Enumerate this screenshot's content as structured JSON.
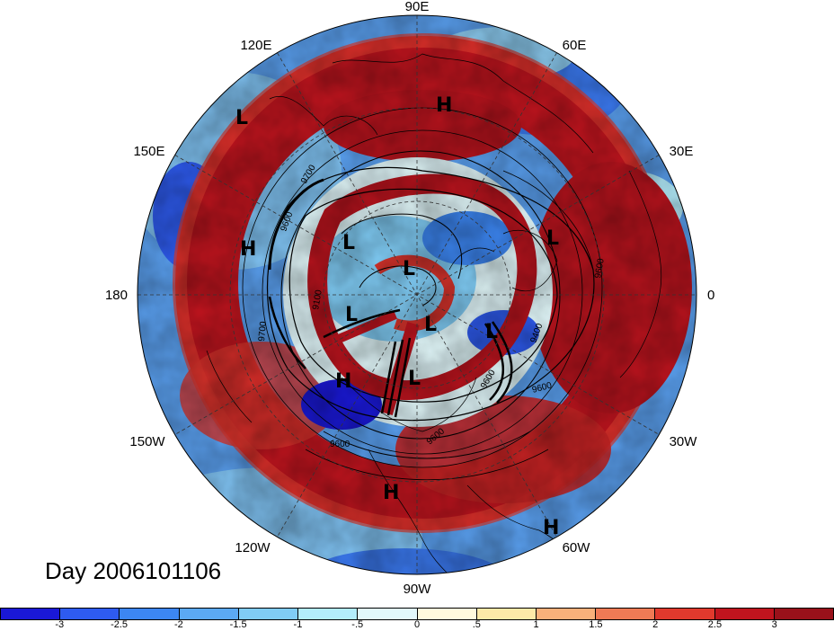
{
  "title": "Day 2006101106",
  "longitude_labels": [
    "90E",
    "60E",
    "30E",
    "0",
    "30W",
    "60W",
    "90W",
    "120W",
    "150W",
    "180",
    "150E",
    "120E"
  ],
  "pressure_centers": [
    {
      "type": "H",
      "lon": "90E"
    },
    {
      "type": "L",
      "lon": "125E"
    },
    {
      "type": "H",
      "lon": "170E"
    },
    {
      "type": "L",
      "lon": "20E"
    },
    {
      "type": "L",
      "lon": "140E"
    },
    {
      "type": "L",
      "lon": "110E"
    },
    {
      "type": "L",
      "lon": "170W"
    },
    {
      "type": "L",
      "lon": "120W"
    },
    {
      "type": "L",
      "lon": "40W"
    },
    {
      "type": "L",
      "lon": "110W"
    },
    {
      "type": "H",
      "lon": "140W"
    },
    {
      "type": "H",
      "lon": "95W"
    },
    {
      "type": "H",
      "lon": "60W"
    }
  ],
  "contour_labels": [
    "9700",
    "9600",
    "9100",
    "9700",
    "9600",
    "9400",
    "9600",
    "9600",
    "9600",
    "9600"
  ],
  "colorbar": {
    "labels": [
      "-3",
      "-2.5",
      "-2",
      "-1.5",
      "-1",
      "-.5",
      "0",
      ".5",
      "1",
      "1.5",
      "2",
      "2.5",
      "3"
    ],
    "colors": [
      "#1a18d6",
      "#2e5bf0",
      "#3c86f2",
      "#5ba9f3",
      "#80ccf5",
      "#b3ecfb",
      "#e2f8fb",
      "#fff9dd",
      "#fde9a8",
      "#f8b07a",
      "#ef7a55",
      "#e1392d",
      "#c0141e",
      "#99111a"
    ]
  }
}
